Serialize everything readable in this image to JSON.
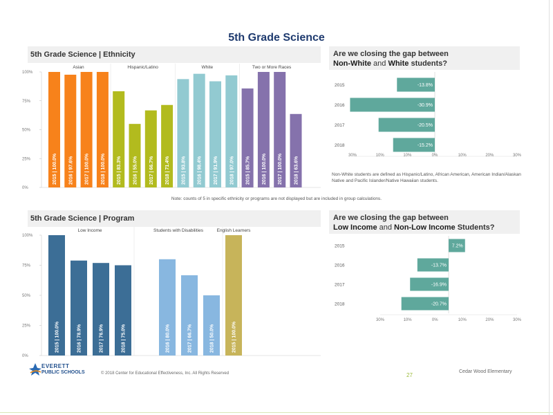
{
  "page_title": "5th Grade Science",
  "ethnicity_panel": {
    "title": "5th Grade Science | Ethnicity"
  },
  "program_panel": {
    "title": "5th Grade Science | Program"
  },
  "gap1": {
    "line1": "Are we closing the gap between",
    "bold_a": "Non-White",
    "mid": " and ",
    "bold_b": "White",
    "tail": " students?"
  },
  "gap2": {
    "line1": "Are we closing the gap between",
    "bold_a": "Low Income",
    "mid": " and ",
    "bold_b": "Non-Low Income",
    "tail": " Students?"
  },
  "ethnicity_note": "Non-White students are defined as Hispanic/Latino, African American, American Indian/Alaskan Native and Pacific Islander/Native Hawaiian students.",
  "ethnicity_footnote": "Note: counts of 5 in specific ethnicity or programs are not displayed but are included in group calculations.",
  "footer": {
    "logo_line1": "EVERETT",
    "logo_line2": "PUBLIC SCHOOLS",
    "copyright": "© 2018 Center for Educational Effectiveness, Inc. All Rights Reserved",
    "page_number": "27",
    "school": "Cedar Wood Elementary"
  },
  "chart_data": [
    {
      "type": "bar",
      "name": "ethnicity",
      "yticks": [
        "0%",
        "25%",
        "50%",
        "75%",
        "100%"
      ],
      "ylim": [
        0,
        100
      ],
      "groups": [
        {
          "name": "Asian",
          "color": "#f7821b",
          "bars": [
            {
              "label": "2015 | 100.0%",
              "value": 100.0
            },
            {
              "label": "2016 | 97.6%",
              "value": 97.6
            },
            {
              "label": "2017 | 100.0%",
              "value": 100.0
            },
            {
              "label": "2018 | 100.0%",
              "value": 100.0
            }
          ]
        },
        {
          "name": "Hispanic/Latino",
          "color": "#b2bb1e",
          "bars": [
            {
              "label": "2015 | 83.3%",
              "value": 83.3
            },
            {
              "label": "2016 | 55.0%",
              "value": 55.0
            },
            {
              "label": "2017 | 66.7%",
              "value": 66.7
            },
            {
              "label": "2018 | 71.4%",
              "value": 71.4
            }
          ]
        },
        {
          "name": "White",
          "color": "#92cad1",
          "bars": [
            {
              "label": "2015 | 93.8%",
              "value": 93.8
            },
            {
              "label": "2016 | 98.4%",
              "value": 98.4
            },
            {
              "label": "2017 | 91.9%",
              "value": 91.9
            },
            {
              "label": "2018 | 97.0%",
              "value": 97.0
            }
          ]
        },
        {
          "name": "Two or More Races",
          "color": "#8572ac",
          "bars": [
            {
              "label": "2015 | 85.7%",
              "value": 85.7
            },
            {
              "label": "2016 | 100.0%",
              "value": 100.0
            },
            {
              "label": "2017 | 100.0%",
              "value": 100.0
            },
            {
              "label": "2018 | 63.6%",
              "value": 63.6
            }
          ]
        }
      ]
    },
    {
      "type": "bar",
      "name": "program",
      "yticks": [
        "0%",
        "25%",
        "50%",
        "75%",
        "100%"
      ],
      "ylim": [
        0,
        100
      ],
      "groups": [
        {
          "name": "Low Income",
          "color": "#3c6e96",
          "bars": [
            {
              "label": "2015 | 100.0%",
              "value": 100.0
            },
            {
              "label": "2016 | 78.9%",
              "value": 78.9
            },
            {
              "label": "2017 | 76.9%",
              "value": 76.9
            },
            {
              "label": "2018 | 75.0%",
              "value": 75.0
            }
          ]
        },
        {
          "name": "Students with Disabilities",
          "color": "#88b7e0",
          "bars": [
            {
              "label": "",
              "value": null
            },
            {
              "label": "2016 | 80.0%",
              "value": 80.0
            },
            {
              "label": "2017 | 66.7%",
              "value": 66.7
            },
            {
              "label": "2018 | 50.0%",
              "value": 50.0
            }
          ]
        },
        {
          "name": "English Learners",
          "color": "#c7b45a",
          "bars": [
            {
              "label": "2015 | 100.0%",
              "value": 100.0
            }
          ]
        }
      ]
    },
    {
      "type": "bar",
      "orientation": "horizontal",
      "name": "gap-non-white",
      "color": "#5fa89c",
      "xlim": [
        -30,
        30
      ],
      "xticks": [
        "30%",
        "10%",
        "10%",
        "0%",
        "10%",
        "20%",
        "30%"
      ],
      "categories": [
        "2015",
        "2016",
        "2017",
        "2018"
      ],
      "values": [
        -13.8,
        -30.9,
        -20.5,
        -15.2
      ],
      "labels": [
        "-13.8%",
        "-30.9%",
        "-20.5%",
        "-15.2%"
      ]
    },
    {
      "type": "bar",
      "orientation": "horizontal",
      "name": "gap-low-income",
      "color": "#5fa89c",
      "xlim": [
        -30,
        30
      ],
      "xticks": [
        "30%",
        "10%",
        "0%",
        "10%",
        "20%",
        "30%"
      ],
      "categories": [
        "2015",
        "2016",
        "2017",
        "2018"
      ],
      "values": [
        7.2,
        -13.7,
        -16.9,
        -20.7
      ],
      "labels": [
        "7.2%",
        "-13.7%",
        "-16.9%",
        "-20.7%"
      ]
    }
  ]
}
